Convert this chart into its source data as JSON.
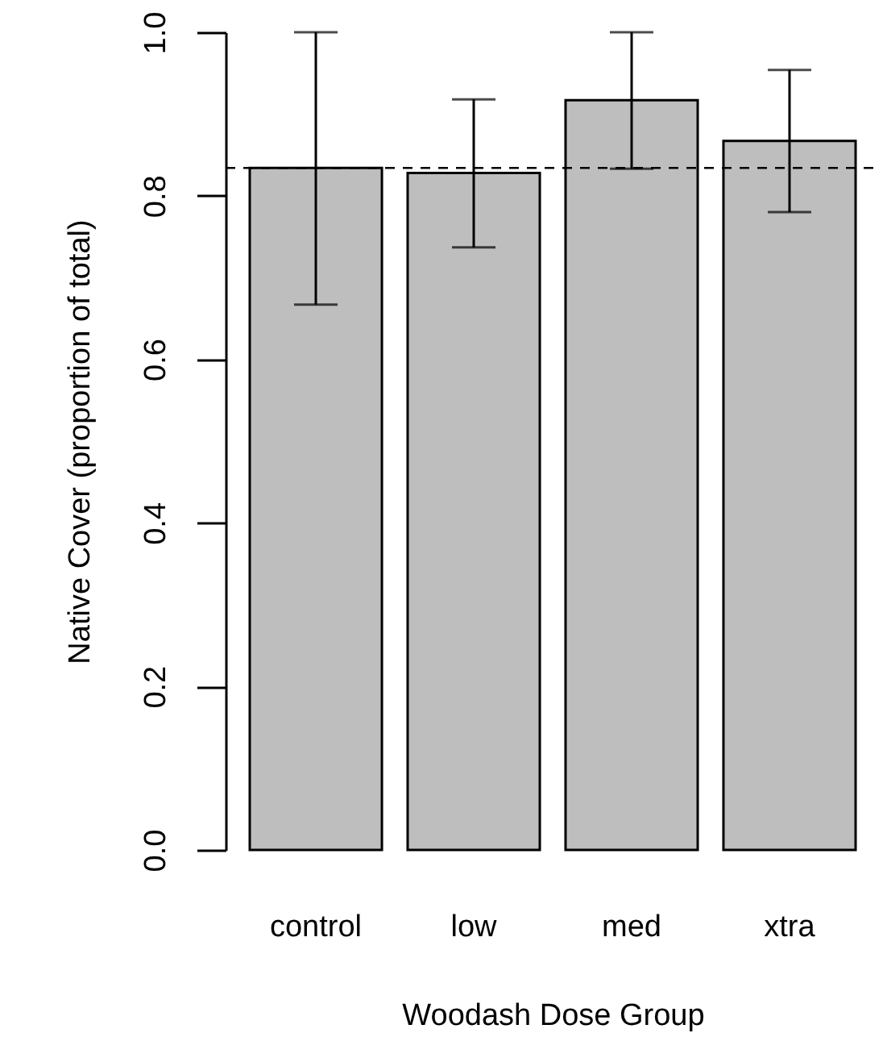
{
  "chart_data": {
    "type": "bar",
    "xlabel": "Woodash Dose Group",
    "ylabel": "Native Cover (proportion of total)",
    "categories": [
      "control",
      "low",
      "med",
      "xtra"
    ],
    "values": [
      0.834,
      0.828,
      0.917,
      0.867
    ],
    "errors": [
      [
        0.667,
        1.0
      ],
      [
        0.737,
        0.918
      ],
      [
        0.833,
        1.0
      ],
      [
        0.78,
        0.954
      ]
    ],
    "color": "#bebebe",
    "ylim": [
      0,
      1
    ],
    "yticks": [
      {
        "value": 0,
        "label": "0.0"
      },
      {
        "value": 0.2,
        "label": "0.2"
      },
      {
        "value": 0.4,
        "label": "0.4"
      },
      {
        "value": 0.6,
        "label": "0.6"
      },
      {
        "value": 0.8,
        "label": "0.8"
      },
      {
        "value": 1,
        "label": "1.0"
      }
    ],
    "ref_lines": [
      {
        "axis": "y",
        "value": 0.834,
        "color": "#000000",
        "line_style": "dashed"
      }
    ],
    "grid": false
  }
}
